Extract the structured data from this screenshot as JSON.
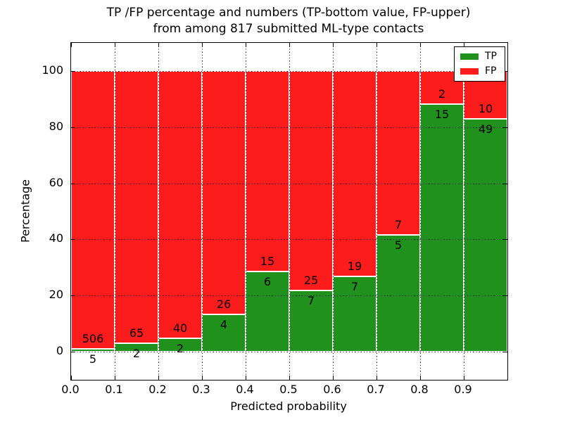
{
  "title": {
    "line1": "TP /FP percentage and numbers (TP-bottom value, FP-upper)",
    "line2": "from among 817 submitted ML-type contacts"
  },
  "axes": {
    "xlabel": "Predicted probability",
    "ylabel": "Percentage",
    "xtick_labels": [
      "0.0",
      "0.1",
      "0.2",
      "0.3",
      "0.4",
      "0.5",
      "0.6",
      "0.7",
      "0.8",
      "0.9"
    ],
    "xtick_values": [
      0.0,
      0.1,
      0.2,
      0.3,
      0.4,
      0.5,
      0.6,
      0.7,
      0.8,
      0.9
    ],
    "ytick_labels": [
      "0",
      "20",
      "40",
      "60",
      "80",
      "100"
    ],
    "ytick_values": [
      0,
      20,
      40,
      60,
      80,
      100
    ],
    "xlim": [
      0.0,
      1.0
    ],
    "ylim": [
      -10,
      110
    ]
  },
  "legend": {
    "items": [
      {
        "label": "TP",
        "color": "#21911e"
      },
      {
        "label": "FP",
        "color": "#fc1c1c"
      }
    ]
  },
  "chart_data": {
    "type": "bar",
    "stacked": true,
    "normalized_to_percent": 100,
    "title": "TP /FP percentage and numbers (TP-bottom value, FP-upper) from among 817 submitted ML-type contacts",
    "xlabel": "Predicted probability",
    "ylabel": "Percentage",
    "total_contacts": 817,
    "bin_edges": [
      0.0,
      0.1,
      0.2,
      0.3,
      0.4,
      0.5,
      0.6,
      0.7,
      0.8,
      0.9,
      1.0
    ],
    "categories": [
      "0.0-0.1",
      "0.1-0.2",
      "0.2-0.3",
      "0.3-0.4",
      "0.4-0.5",
      "0.5-0.6",
      "0.6-0.7",
      "0.7-0.8",
      "0.8-0.9",
      "0.9-1.0"
    ],
    "series": [
      {
        "name": "TP",
        "color": "#21911e",
        "counts": [
          5,
          2,
          2,
          4,
          6,
          7,
          7,
          5,
          15,
          49
        ]
      },
      {
        "name": "FP",
        "color": "#fc1c1c",
        "counts": [
          506,
          65,
          40,
          26,
          15,
          25,
          19,
          7,
          2,
          10
        ]
      }
    ],
    "tp_percent": [
      0.98,
      2.99,
      4.76,
      13.33,
      28.57,
      21.88,
      26.92,
      41.67,
      88.24,
      83.05
    ],
    "fp_percent": [
      99.02,
      97.01,
      95.24,
      86.67,
      71.43,
      78.12,
      73.08,
      58.33,
      11.76,
      16.95
    ],
    "ylim": [
      -10,
      110
    ],
    "yticks": [
      0,
      20,
      40,
      60,
      80,
      100
    ],
    "grid": true,
    "grid_style": "dotted",
    "legend_position": "upper right"
  },
  "colors": {
    "tp": "#21911e",
    "fp": "#fc1c1c",
    "background": "#ffffff",
    "frame": "#000000",
    "grid": "#000000",
    "text": "#000000"
  }
}
